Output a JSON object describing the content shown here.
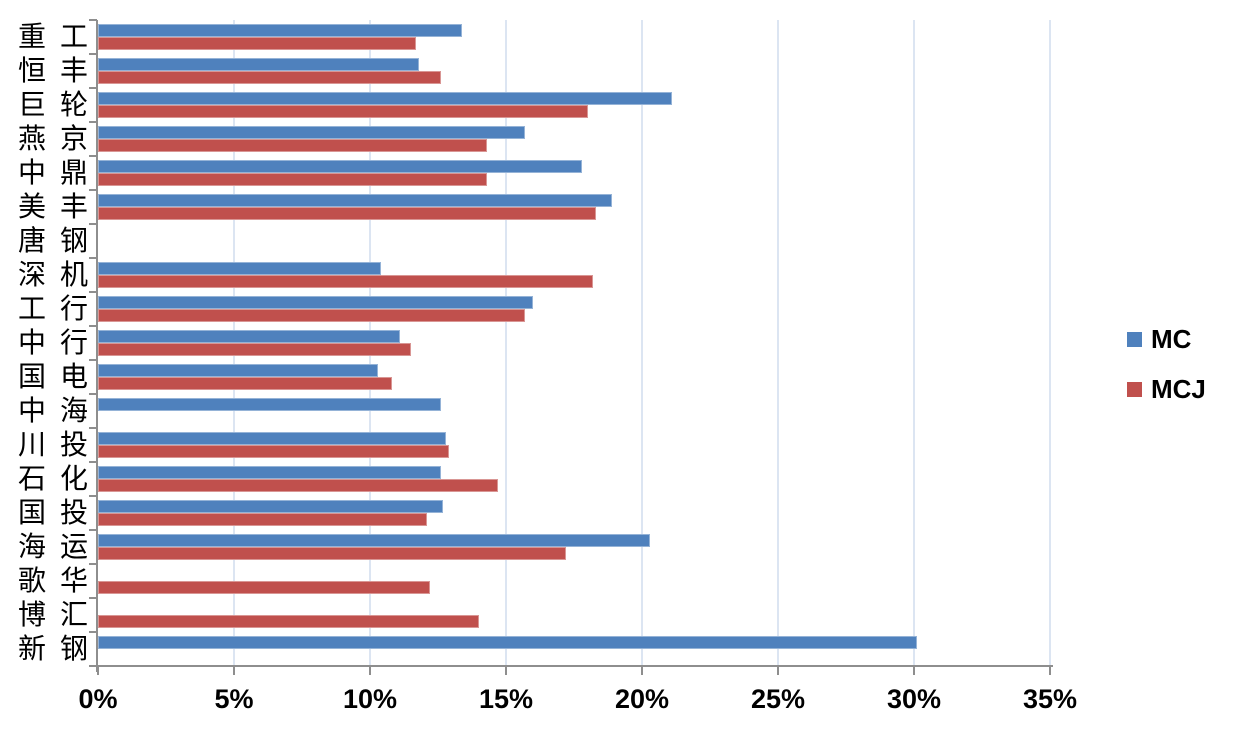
{
  "chart_data": {
    "type": "bar",
    "orientation": "horizontal",
    "title": "",
    "xlabel": "",
    "ylabel": "",
    "x_min": 0,
    "x_max": 35,
    "x_tick_step": 5,
    "x_ticks": [
      "0%",
      "5%",
      "10%",
      "15%",
      "20%",
      "25%",
      "30%",
      "35%"
    ],
    "grid": true,
    "legend_position": "right",
    "categories": [
      "重工",
      "恒丰",
      "巨轮",
      "燕京",
      "中鼎",
      "美丰",
      "唐钢",
      "深机",
      "工行",
      "中行",
      "国电",
      "中海",
      "川投",
      "石化",
      "国投",
      "海运",
      "歌华",
      "博汇",
      "新钢"
    ],
    "series": [
      {
        "name": "MC",
        "color": "#4F81BD",
        "border_color": "#95B3D7",
        "values": [
          13.4,
          11.8,
          21.1,
          15.7,
          17.8,
          18.9,
          0,
          10.4,
          16.0,
          11.1,
          10.3,
          12.6,
          12.8,
          12.6,
          12.7,
          20.3,
          0,
          0,
          30.1
        ]
      },
      {
        "name": "MCJ",
        "color": "#C0504D",
        "border_color": "#D99694",
        "values": [
          11.7,
          12.6,
          18.0,
          14.3,
          14.3,
          18.3,
          0,
          18.2,
          15.7,
          11.5,
          10.8,
          0,
          12.9,
          14.7,
          12.1,
          17.2,
          12.2,
          14.0,
          0
        ]
      }
    ]
  },
  "legend": {
    "items": [
      {
        "label": "MC",
        "color": "#4F81BD"
      },
      {
        "label": "MCJ",
        "color": "#C0504D"
      }
    ]
  },
  "colors": {
    "axis": "#8E8E8E",
    "gridline": "#DCE5F2",
    "background": "#FFFFFF",
    "text": "#000000"
  }
}
